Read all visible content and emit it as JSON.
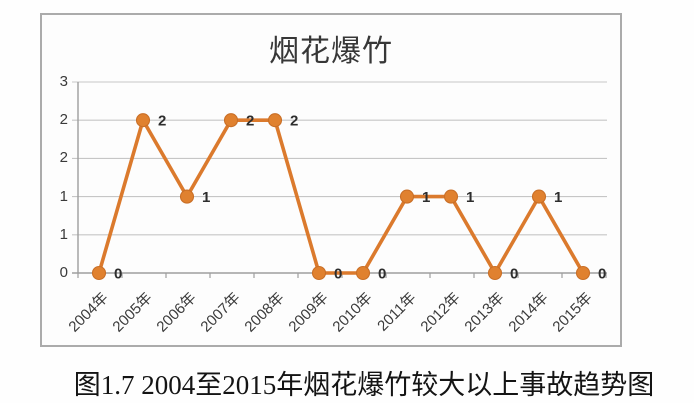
{
  "chart": {
    "title": "烟花爆竹",
    "caption": "图1.7 2004至2015年烟花爆竹较大以上事故趋势图"
  },
  "chart_data": {
    "type": "line",
    "title": "烟花爆竹",
    "categories": [
      "2004年",
      "2005年",
      "2006年",
      "2007年",
      "2008年",
      "2009年",
      "2010年",
      "2011年",
      "2012年",
      "2013年",
      "2014年",
      "2015年"
    ],
    "series": [
      {
        "name": "烟花爆竹",
        "values": [
          0,
          2,
          1,
          2,
          2,
          0,
          0,
          1,
          1,
          0,
          1,
          0
        ]
      }
    ],
    "data_labels": [
      "0",
      "2",
      "1",
      "2",
      "2",
      "0",
      "0",
      "1",
      "1",
      "0",
      "1",
      "0"
    ],
    "xlabel": "",
    "ylabel": "",
    "y_tick_labels_top_to_bottom": [
      "3",
      "2",
      "2",
      "1",
      "1",
      "0"
    ],
    "ylim": [
      0,
      2.5
    ],
    "y_major_unit": 0.5,
    "grid": true,
    "legend": "none",
    "x_labels_rotation_deg": -45,
    "colors": {
      "line": "#DB7A2D",
      "marker_fill": "#E0812F",
      "marker_stroke": "#C96F27",
      "gridline": "#C6C6C6",
      "axis": "#9E9E9E",
      "frame_border": "#ABABAB",
      "tick_text": "#3A3A3A",
      "data_label_text": "#2E2E2E"
    }
  }
}
